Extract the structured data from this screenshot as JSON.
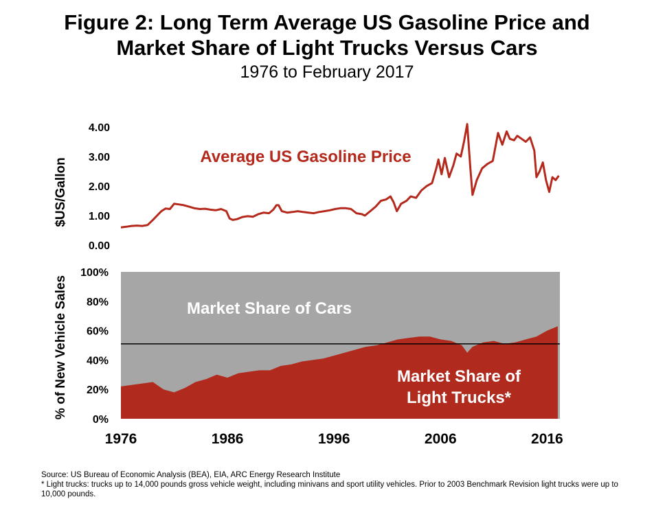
{
  "title_line1": "Figure 2: Long Term Average US Gasoline Price and",
  "title_line2": "Market Share of Light Trucks Versus Cars",
  "subtitle": "1976 to February 2017",
  "colors": {
    "gas_line": "#b5291c",
    "trucks": "#b02a1d",
    "cars": "#a6a6a6",
    "reference_line": "#000000"
  },
  "chart_data": [
    {
      "type": "line",
      "ylabel": "$US/Gallon",
      "ylim": [
        0,
        4
      ],
      "yticks": [
        "0.00",
        "1.00",
        "2.00",
        "3.00",
        "4.00"
      ],
      "xlim": [
        1976,
        2017.2
      ],
      "annotation": "Average US Gasoline Price",
      "series": [
        {
          "name": "Average US Gasoline Price",
          "x": [
            1976.0,
            1976.5,
            1977.0,
            1977.5,
            1978.0,
            1978.5,
            1979.0,
            1979.4,
            1979.8,
            1980.2,
            1980.6,
            1981.0,
            1981.4,
            1981.9,
            1982.4,
            1982.9,
            1983.4,
            1983.9,
            1984.4,
            1984.9,
            1985.4,
            1985.9,
            1986.2,
            1986.5,
            1986.9,
            1987.4,
            1987.9,
            1988.4,
            1988.9,
            1989.4,
            1989.9,
            1990.3,
            1990.6,
            1990.8,
            1991.1,
            1991.6,
            1992.1,
            1992.6,
            1993.1,
            1993.6,
            1994.1,
            1994.6,
            1995.1,
            1995.6,
            1996.1,
            1996.6,
            1997.1,
            1997.6,
            1998.1,
            1998.6,
            1998.9,
            1999.4,
            1999.9,
            2000.4,
            2000.9,
            2001.3,
            2001.6,
            2001.9,
            2002.3,
            2002.8,
            2003.2,
            2003.7,
            2004.2,
            2004.7,
            2005.2,
            2005.6,
            2005.8,
            2006.1,
            2006.4,
            2006.8,
            2007.2,
            2007.5,
            2007.9,
            2008.2,
            2008.5,
            2008.8,
            2009.0,
            2009.4,
            2009.9,
            2010.4,
            2010.9,
            2011.4,
            2011.8,
            2012.2,
            2012.5,
            2012.9,
            2013.2,
            2013.6,
            2014.0,
            2014.4,
            2014.8,
            2015.0,
            2015.3,
            2015.6,
            2015.9,
            2016.2,
            2016.5,
            2016.8,
            2017.1
          ],
          "y": [
            0.6,
            0.62,
            0.65,
            0.66,
            0.65,
            0.68,
            0.85,
            1.0,
            1.15,
            1.24,
            1.22,
            1.4,
            1.38,
            1.35,
            1.3,
            1.25,
            1.22,
            1.23,
            1.2,
            1.18,
            1.22,
            1.15,
            0.9,
            0.85,
            0.88,
            0.95,
            0.98,
            0.96,
            1.05,
            1.1,
            1.08,
            1.2,
            1.35,
            1.35,
            1.15,
            1.1,
            1.12,
            1.15,
            1.12,
            1.1,
            1.08,
            1.12,
            1.15,
            1.18,
            1.22,
            1.25,
            1.25,
            1.22,
            1.08,
            1.05,
            1.0,
            1.15,
            1.3,
            1.5,
            1.55,
            1.65,
            1.45,
            1.15,
            1.4,
            1.5,
            1.65,
            1.6,
            1.85,
            2.0,
            2.1,
            2.6,
            2.9,
            2.4,
            2.95,
            2.3,
            2.7,
            3.1,
            3.0,
            3.5,
            4.1,
            2.6,
            1.7,
            2.2,
            2.6,
            2.75,
            2.85,
            3.8,
            3.4,
            3.85,
            3.6,
            3.55,
            3.7,
            3.6,
            3.5,
            3.65,
            3.2,
            2.3,
            2.5,
            2.8,
            2.2,
            1.8,
            2.3,
            2.2,
            2.35
          ]
        }
      ]
    },
    {
      "type": "area",
      "ylabel": "% of New Vehicle Sales",
      "ylim": [
        0,
        100
      ],
      "yticks": [
        "0%",
        "20%",
        "40%",
        "60%",
        "80%",
        "100%"
      ],
      "xlim": [
        1976,
        2017.2
      ],
      "xticks": [
        "1976",
        "1986",
        "1996",
        "2006",
        "2016"
      ],
      "reference_line": 51,
      "annotations": {
        "cars": "Market Share of Cars",
        "trucks_line1": "Market Share of",
        "trucks_line2": "Light Trucks*"
      },
      "series": [
        {
          "name": "Market Share of Light Trucks*",
          "x": [
            1976.0,
            1977.0,
            1978.0,
            1979.0,
            1980.0,
            1981.0,
            1982.0,
            1983.0,
            1984.0,
            1985.0,
            1986.0,
            1987.0,
            1988.0,
            1989.0,
            1990.0,
            1991.0,
            1992.0,
            1993.0,
            1994.0,
            1995.0,
            1996.0,
            1997.0,
            1998.0,
            1999.0,
            2000.0,
            2001.0,
            2002.0,
            2003.0,
            2004.0,
            2005.0,
            2006.0,
            2007.0,
            2008.0,
            2008.5,
            2009.0,
            2010.0,
            2011.0,
            2012.0,
            2013.0,
            2014.0,
            2015.0,
            2016.0,
            2017.0
          ],
          "y": [
            22,
            23,
            24,
            25,
            20,
            18,
            21,
            25,
            27,
            30,
            28,
            31,
            32,
            33,
            33,
            36,
            37,
            39,
            40,
            41,
            43,
            45,
            47,
            49,
            50,
            52,
            54,
            55,
            56,
            56,
            54,
            53,
            50,
            45,
            49,
            52,
            53,
            51,
            52,
            54,
            56,
            60,
            63
          ]
        },
        {
          "name": "Market Share of Cars",
          "fill_to": 100
        }
      ]
    }
  ],
  "footer": {
    "source": "Source: US Bureau of Economic Analysis (BEA), EIA,  ARC Energy Research Institute",
    "note": "* Light trucks: trucks up to 14,000 pounds gross vehicle weight, including minivans and sport utility vehicles. Prior to 2003 Benchmark Revision light trucks were up to 10,000 pounds."
  }
}
